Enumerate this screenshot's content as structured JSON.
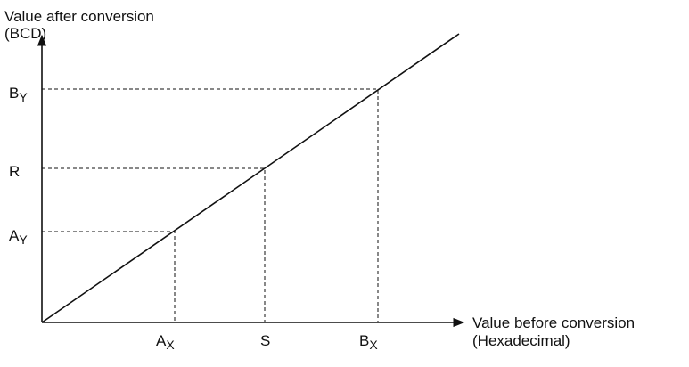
{
  "y_axis": {
    "title": [
      "Value after conversion",
      "(BCD)"
    ],
    "labels": [
      {
        "base": "B",
        "sub": "Y"
      },
      {
        "base": "R"
      },
      {
        "base": "A",
        "sub": "Y"
      }
    ]
  },
  "x_axis": {
    "title": [
      "Value before conversion",
      "(Hexadecimal)"
    ],
    "labels": [
      {
        "base": "A",
        "sub": "X"
      },
      {
        "base": "S"
      },
      {
        "base": "B",
        "sub": "X"
      }
    ]
  }
}
